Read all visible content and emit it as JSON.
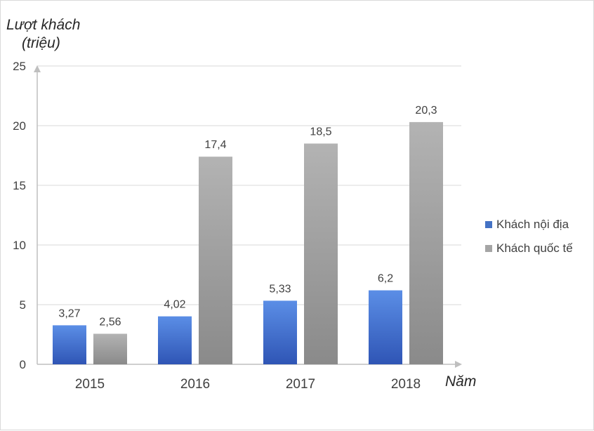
{
  "chart_data": {
    "type": "bar",
    "title": "",
    "ylabel_line1": "Lượt khách",
    "ylabel_line2": "(triệu)",
    "xlabel": "Năm",
    "categories": [
      "2015",
      "2016",
      "2017",
      "2018"
    ],
    "series": [
      {
        "name": "Khách nội địa",
        "values": [
          3.27,
          4.02,
          5.33,
          6.2
        ],
        "labels": [
          "3,27",
          "4,02",
          "5,33",
          "6,2"
        ],
        "color": "#4472c4"
      },
      {
        "name": "Khách quốc tế",
        "values": [
          2.56,
          17.4,
          18.5,
          20.3
        ],
        "labels": [
          "2,56",
          "17,4",
          "18,5",
          "20,3"
        ],
        "color": "#a5a5a5"
      }
    ],
    "ylim": [
      0,
      25
    ],
    "yticks": [
      0,
      5,
      10,
      15,
      20,
      25
    ],
    "grid": true,
    "legend": "right"
  }
}
